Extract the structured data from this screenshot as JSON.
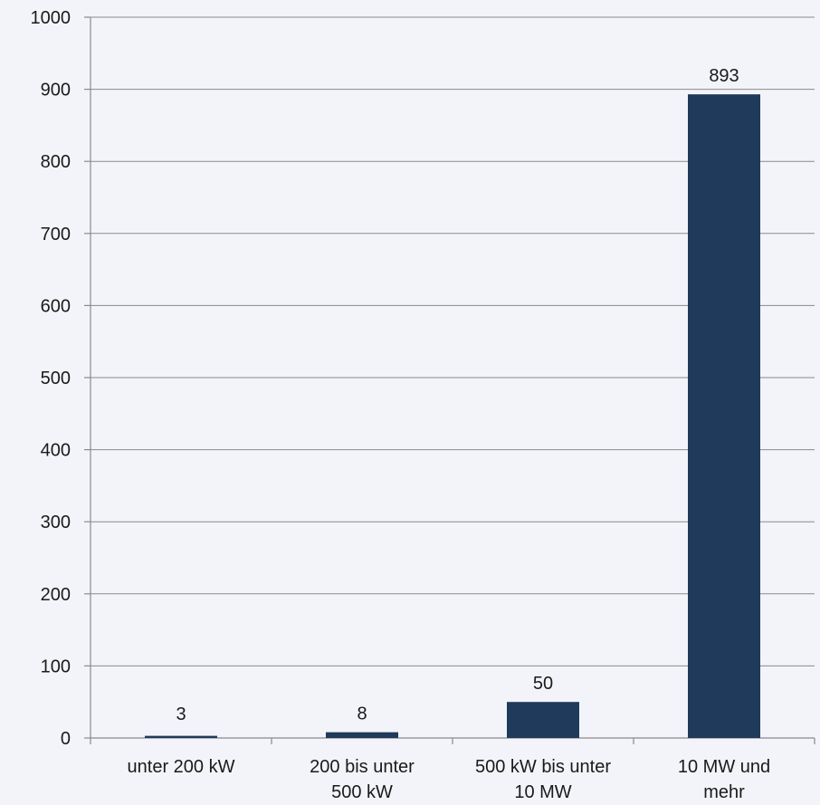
{
  "chart_data": {
    "type": "bar",
    "categories": [
      [
        "unter 200 kW"
      ],
      [
        "200 bis unter",
        "500 kW"
      ],
      [
        "500 kW bis unter",
        "10 MW"
      ],
      [
        "10 MW und",
        "mehr"
      ]
    ],
    "values": [
      3,
      8,
      50,
      893
    ],
    "data_labels": [
      "3",
      "8",
      "50",
      "893"
    ],
    "ylim": [
      0,
      1000
    ],
    "yticks": [
      0,
      100,
      200,
      300,
      400,
      500,
      600,
      700,
      800,
      900,
      1000
    ],
    "grid": true,
    "bar_color": "#1f3a5a",
    "background": "#f3f4f9"
  }
}
